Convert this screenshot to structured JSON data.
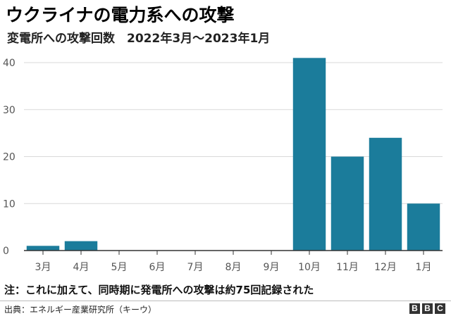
{
  "title": "ウクライナの電力系への攻撃",
  "subtitle": "変電所への攻撃回数　2022年3月～2023年1月",
  "note": "注：これに加えて、同時期に発電所への攻撃は約75回記録された",
  "source": "出典：エネルギー産業研究所（キーウ）",
  "brand": [
    "B",
    "B",
    "C"
  ],
  "colors": {
    "bar": "#1b7c9b",
    "grid": "#d9d9d9",
    "axis": "#333333"
  },
  "chart_data": {
    "type": "bar",
    "categories": [
      "3月",
      "4月",
      "5月",
      "6月",
      "7月",
      "8月",
      "9月",
      "10月",
      "11月",
      "12月",
      "1月"
    ],
    "values": [
      1,
      2,
      0,
      0,
      0,
      0,
      0,
      41,
      20,
      24,
      10
    ],
    "ylim": [
      0,
      40
    ],
    "yticks": [
      "0",
      "10",
      "20",
      "30",
      "40"
    ],
    "grid": true
  }
}
